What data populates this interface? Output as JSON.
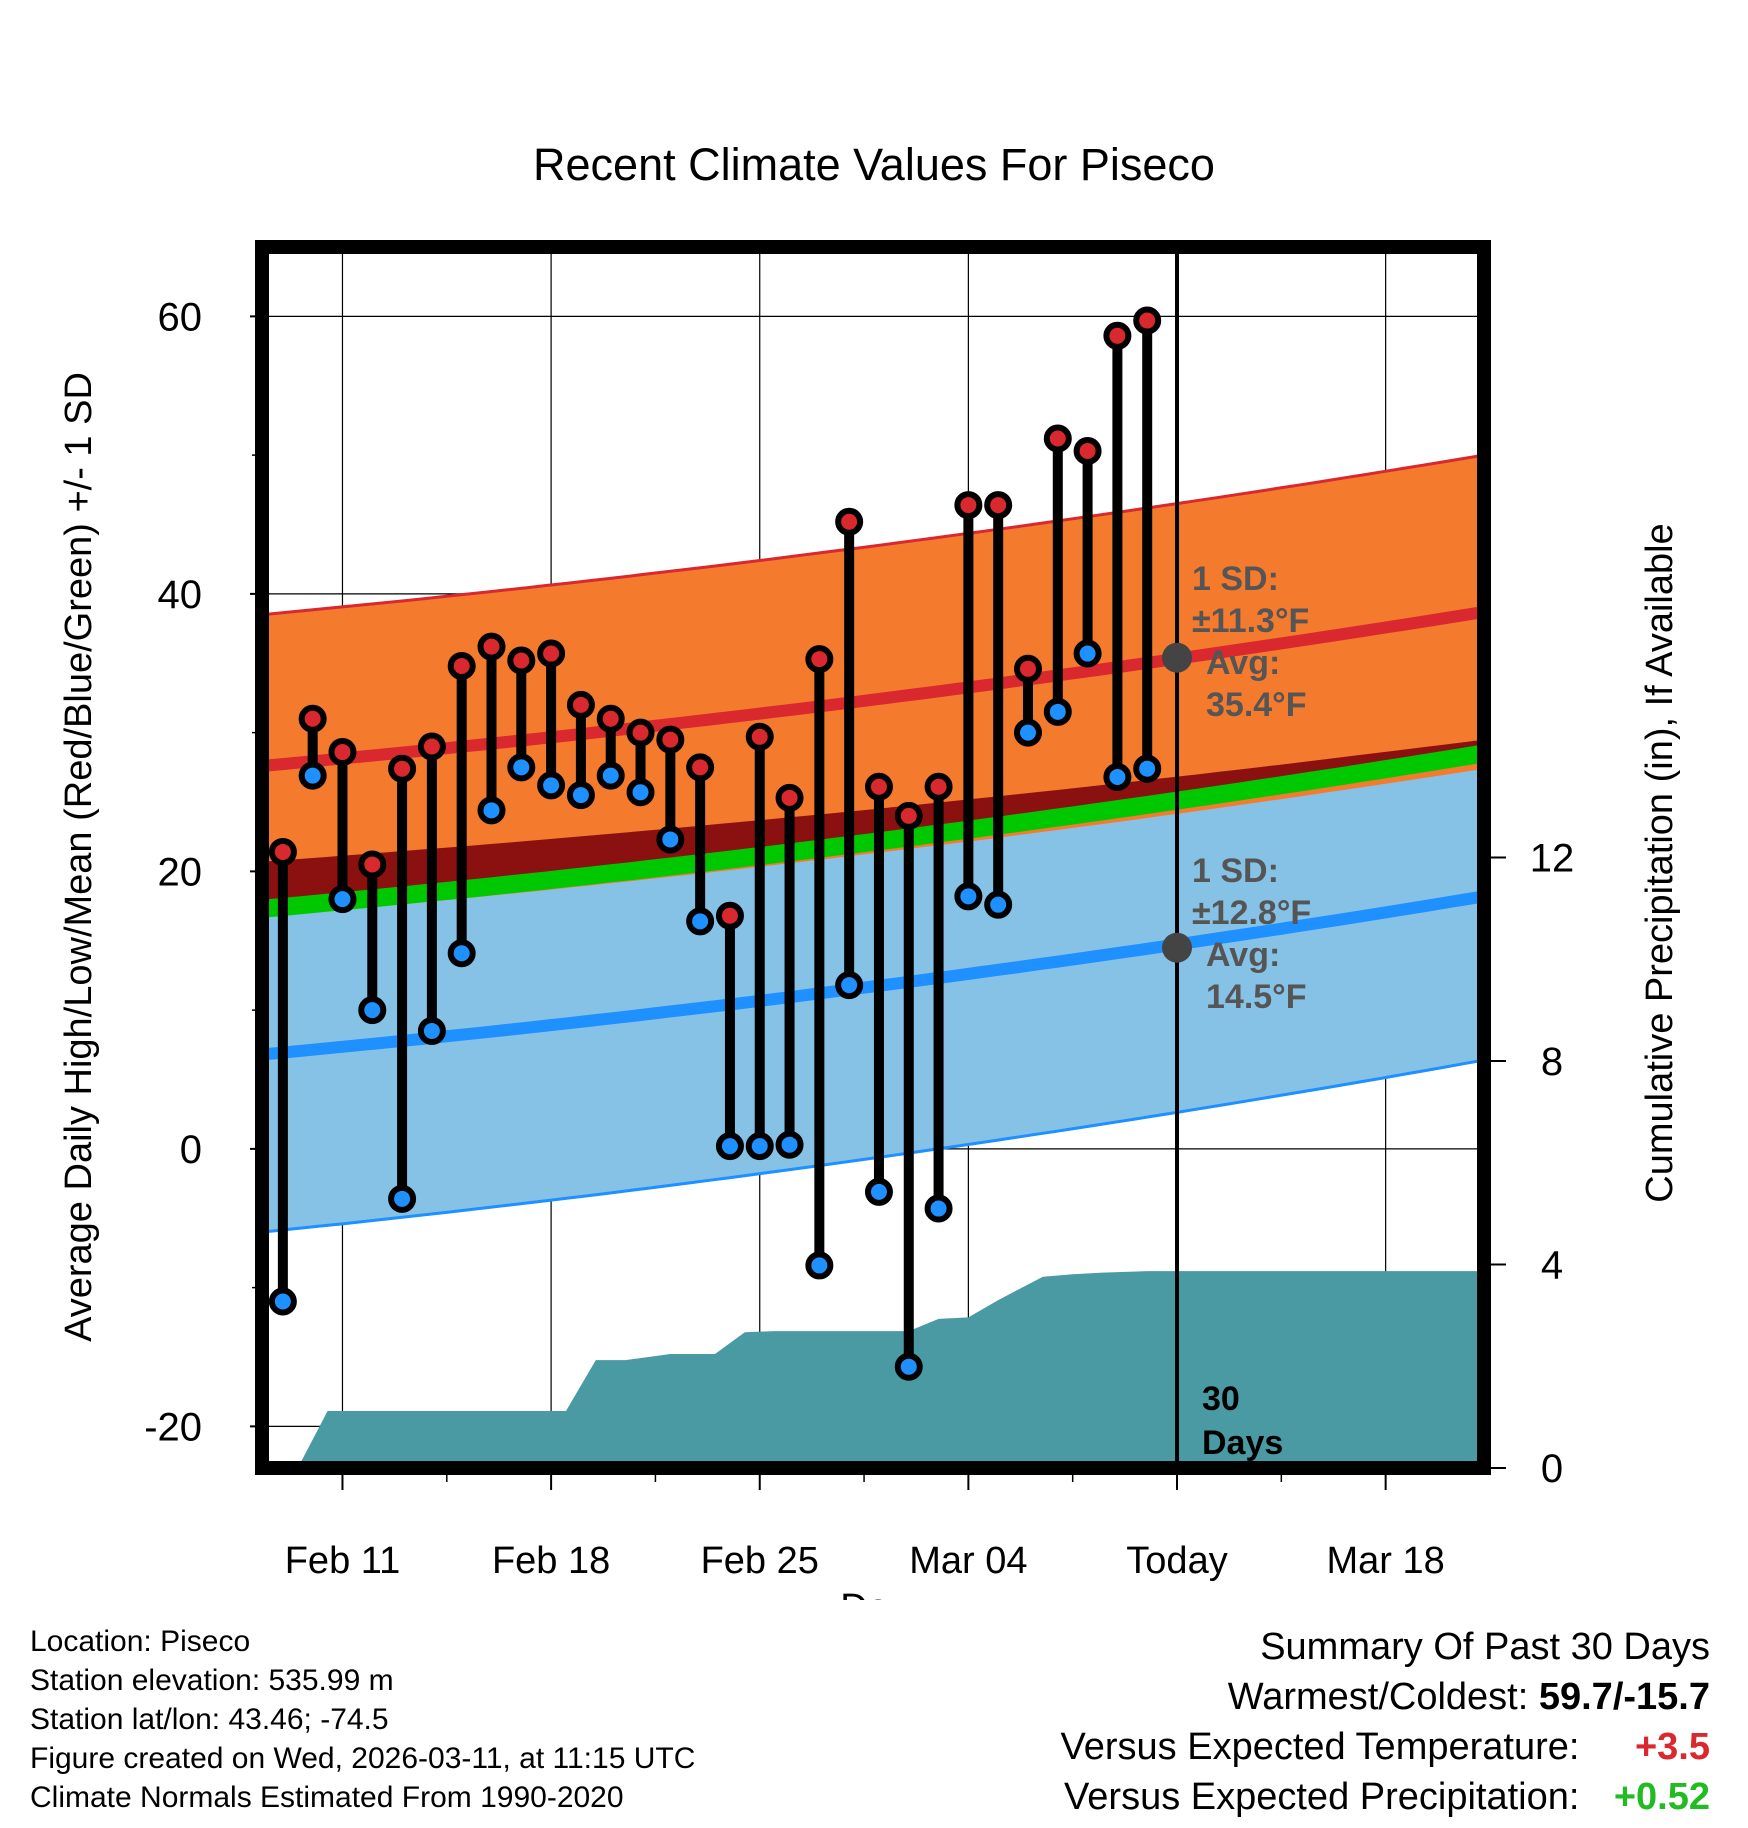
{
  "chart_data": {
    "type": "line",
    "title": "Recent Climate Values For Piseco",
    "xlabel": "Day",
    "ylabel": "Average Daily High/Low/Mean (Red/Blue/Green) +/- 1 SD",
    "y2label": "Cumulative Precipitation (in), If Available",
    "x_tick_labels": [
      "Feb 11",
      "Feb 18",
      "Feb 25",
      "Mar 04",
      "Today",
      "Mar 18"
    ],
    "x_tick_days": [
      2,
      9,
      16,
      23,
      30,
      37
    ],
    "x_range_days": [
      -0.7,
      40.3
    ],
    "ylim": [
      -23,
      65
    ],
    "y_ticks": [
      -20,
      0,
      20,
      40,
      60
    ],
    "y2lim": [
      0,
      24
    ],
    "y2_ticks": [
      0,
      4,
      8,
      12
    ],
    "grid": true,
    "normals": {
      "avg_high_start": 27.6,
      "avg_high_end": 38.7,
      "high_sd_upper_start": 38.5,
      "high_sd_upper_end": 50.0,
      "avg_low_start": 6.8,
      "avg_low_end": 18.2,
      "low_sd_lower_start": -6.0,
      "low_sd_lower_end": 6.4,
      "avg_mean_start": 17.3,
      "avg_mean_end": 28.5,
      "mean_sd_upper_start": 20.7,
      "mean_sd_upper_end": 29.5
    },
    "series": [
      {
        "name": "Daily High",
        "color": "#d9282e",
        "values": [
          21.4,
          31.0,
          28.6,
          20.5,
          27.4,
          29.0,
          34.8,
          36.2,
          35.2,
          35.7,
          32.0,
          31.0,
          30.0,
          29.5,
          27.5,
          16.8,
          29.7,
          25.3,
          35.3,
          45.2,
          26.1,
          24.0,
          26.1,
          46.4,
          46.4,
          34.6,
          51.2,
          50.3,
          58.6,
          59.7
        ]
      },
      {
        "name": "Daily Low",
        "color": "#1e90ff",
        "values": [
          -11.0,
          26.9,
          18.0,
          10.0,
          -3.6,
          8.5,
          14.1,
          24.4,
          27.5,
          26.2,
          25.5,
          26.9,
          25.7,
          22.3,
          16.4,
          0.2,
          0.2,
          0.3,
          -8.4,
          11.8,
          -3.1,
          -15.7,
          -4.3,
          18.2,
          17.6,
          30.0,
          31.5,
          35.7,
          26.8,
          27.4
        ]
      }
    ],
    "cumulative_precipitation": {
      "days": [
        -0.7,
        0.5,
        1.5,
        8.5,
        9.5,
        10.5,
        11.5,
        13.0,
        14.5,
        15.5,
        16.5,
        21.0,
        22.0,
        23.0,
        24.0,
        25.5,
        26.5,
        27.5,
        29.0,
        40.3
      ],
      "values": [
        0.0,
        0.0,
        1.12,
        1.12,
        1.12,
        2.12,
        2.12,
        2.24,
        2.24,
        2.67,
        2.69,
        2.69,
        2.93,
        2.96,
        3.3,
        3.76,
        3.81,
        3.84,
        3.87,
        3.87
      ]
    },
    "annotations": {
      "high_sd": "1 SD:",
      "high_sd_value": "±11.3°F",
      "high_avg_label": "Avg:",
      "high_avg_value": "35.4°F",
      "low_sd": "1 SD:",
      "low_sd_value": "±12.8°F",
      "low_avg_label": "Avg:",
      "low_avg_value": "14.5°F",
      "days_count": "30",
      "days_label": "Days"
    }
  },
  "info": {
    "location": "Location: Piseco",
    "elevation": "Station elevation: 535.99 m",
    "latlon": "Station lat/lon: 43.46; -74.5",
    "created": "Figure created on Wed, 2026-03-11, at 11:15 UTC",
    "normals": "Climate Normals Estimated From 1990-2020"
  },
  "summary": {
    "title": "Summary Of Past 30 Days",
    "warmest_label": "Warmest/Coldest:",
    "warmest_value": "59.7/-15.7",
    "temp_label": "Versus Expected Temperature:",
    "temp_value": "+3.5",
    "precip_label": "Versus Expected Precipitation:",
    "precip_value": "+0.52"
  },
  "colors": {
    "high_band": "#f47a2e",
    "high_line": "#d9282e",
    "mean_band": "#8b1010",
    "mean_line": "#00c800",
    "low_band": "#86c1e6",
    "low_line": "#1e90ff",
    "precip": "#4a9aa3",
    "marker_high": "#d9282e",
    "marker_low": "#1e90ff",
    "avg_marker": "#444444",
    "annotation_text": "#555555"
  }
}
